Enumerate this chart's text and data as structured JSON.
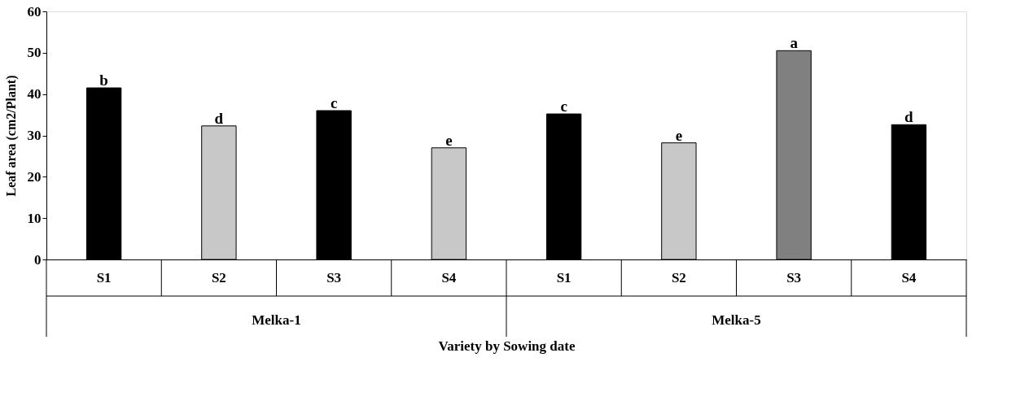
{
  "chart_data": {
    "type": "bar",
    "xlabel": "Variety by Sowing date",
    "ylabel": "Leaf area (cm2/Plant)",
    "categories": [
      "S1",
      "S2",
      "S3",
      "S4",
      "S1",
      "S2",
      "S3",
      "S4"
    ],
    "values": [
      41.5,
      32.3,
      36.0,
      27.0,
      35.2,
      28.2,
      50.5,
      32.6
    ],
    "colors": [
      "#000000",
      "#c8c8c8",
      "#000000",
      "#c8c8c8",
      "#000000",
      "#c8c8c8",
      "#808080",
      "#000000"
    ],
    "value_labels": [
      "b",
      "d",
      "c",
      "e",
      "c",
      "e",
      "a",
      "d"
    ],
    "annotations": [
      "Melka-1",
      "Melka-5"
    ],
    "ylim": [
      0,
      60
    ],
    "yticks": [
      0,
      10,
      20,
      30,
      40,
      50,
      60
    ],
    "grid": false
  }
}
